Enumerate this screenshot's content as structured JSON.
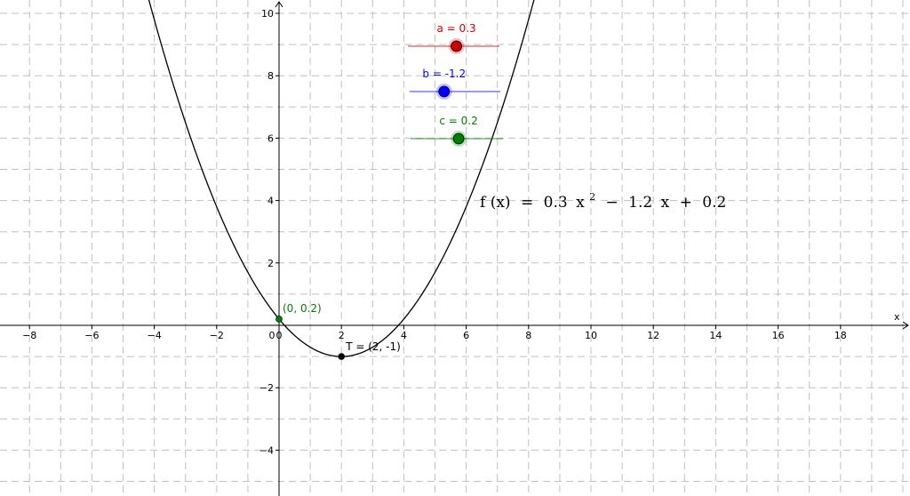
{
  "chart_data": {
    "type": "line",
    "xlim": [
      -9,
      20.0
    ],
    "ylim": [
      -5.3,
      10.5
    ],
    "grid": true,
    "x_axis_label": "x",
    "x_ticks": [
      -8,
      -6,
      -4,
      -2,
      0,
      2,
      4,
      6,
      8,
      10,
      12,
      14,
      16,
      18
    ],
    "y_ticks": [
      -4,
      -2,
      2,
      4,
      6,
      8,
      10
    ],
    "function": {
      "a": 0.3,
      "b": -1.2,
      "c": 0.2
    },
    "formula": {
      "lhs": "f (x)",
      "equals": "=",
      "coef_a": "0.3",
      "x_squared": "x",
      "exponent": "2",
      "minus": "−",
      "coef_b": "1.2",
      "x_linear": "x",
      "plus": "+",
      "coef_c": "0.2"
    },
    "points": [
      {
        "x": 0,
        "y": 0.2,
        "label": "(0, 0.2)",
        "color": "#008000"
      },
      {
        "x": 2,
        "y": -1,
        "label": "T = (2, -1)",
        "color": "#000000"
      }
    ],
    "sliders": [
      {
        "label": "a = 0.3",
        "value": 0.3,
        "fraction": 0.53,
        "color": "#cc0000"
      },
      {
        "label": "b = -1.2",
        "value": -1.2,
        "fraction": 0.38,
        "color": "#0000ff"
      },
      {
        "label": "c = 0.2",
        "value": 0.2,
        "fraction": 0.52,
        "color": "#008000"
      }
    ]
  }
}
